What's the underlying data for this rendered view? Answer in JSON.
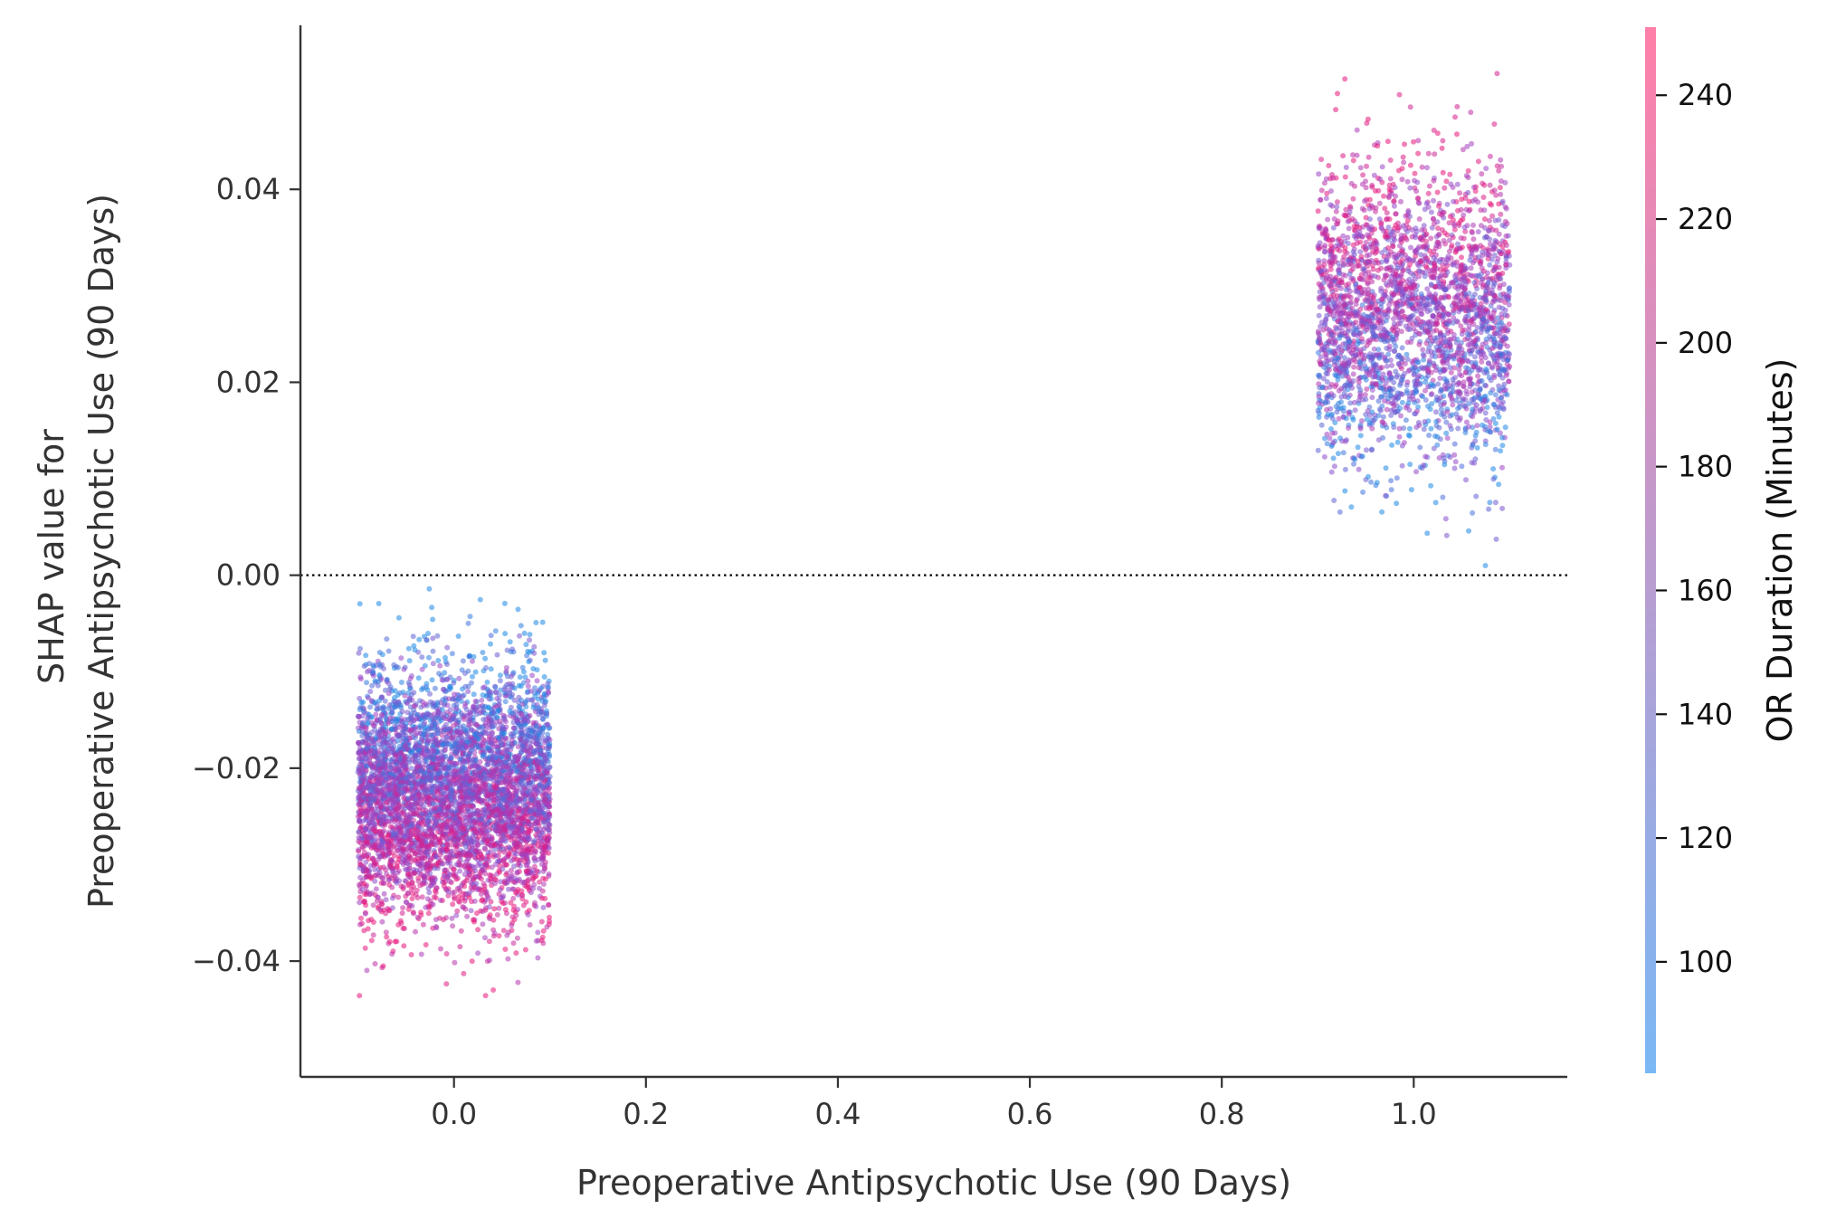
{
  "chart_data": {
    "type": "scatter",
    "title": "",
    "xlabel": "Preoperative Antipsychotic Use (90 Days)",
    "ylabel_lines": [
      "SHAP value for",
      "Preoperative Antipsychotic Use (90 Days)"
    ],
    "xlim": [
      -0.16,
      1.16
    ],
    "ylim": [
      -0.052,
      0.057
    ],
    "xticks": [
      0.0,
      0.2,
      0.4,
      0.6,
      0.8,
      1.0
    ],
    "xtick_labels": [
      "0.0",
      "0.2",
      "0.4",
      "0.6",
      "0.8",
      "1.0"
    ],
    "yticks": [
      -0.04,
      -0.02,
      0.0,
      0.02,
      0.04
    ],
    "ytick_labels": [
      "−0.04",
      "−0.02",
      "0.00",
      "0.02",
      "0.04"
    ],
    "reference_line": {
      "y": 0.0,
      "style": "dotted",
      "color": "#000000"
    },
    "grid": false,
    "jitter_width": 0.1,
    "clusters": [
      {
        "x": 0,
        "n_points": 5200,
        "y_mean": -0.0225,
        "y_std": 0.0062,
        "y_range": [
          -0.047,
          0.0015
        ],
        "color_trend": "higher duration → lower SHAP"
      },
      {
        "x": 1,
        "n_points": 2800,
        "y_mean": 0.0265,
        "y_std": 0.0075,
        "y_range": [
          0.001,
          0.052
        ],
        "color_trend": "higher duration → higher SHAP"
      }
    ],
    "colorbar": {
      "label": "OR Duration (Minutes)",
      "range": [
        82,
        251
      ],
      "ticks": [
        100,
        120,
        140,
        160,
        180,
        200,
        220,
        240
      ],
      "low_color": "#7ab8f5",
      "high_color": "#ff7fa8"
    },
    "point_colors": {
      "low": "#1e88e5",
      "mid": "#9a45c8",
      "high": "#e8157a"
    }
  }
}
